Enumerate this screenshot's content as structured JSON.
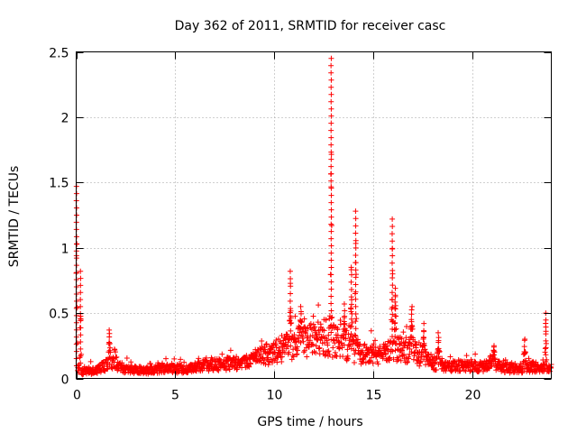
{
  "chart_data": {
    "type": "scatter",
    "title": "Day 362 of 2011, SRMTID for receiver casc",
    "xlabel": "GPS time / hours",
    "ylabel": "SRMTID / TECUs",
    "xlim": [
      0,
      24
    ],
    "ylim": [
      0,
      2.5
    ],
    "xticks": [
      0,
      5,
      10,
      15,
      20
    ],
    "yticks": [
      0,
      0.5,
      1,
      1.5,
      2,
      2.5
    ],
    "xtick_labels": [
      "0",
      "5",
      "10",
      "15",
      "20"
    ],
    "ytick_labels": [
      "0",
      "0.5",
      "1",
      "1.5",
      "2",
      "2.5"
    ],
    "grid": true,
    "marker": "+",
    "marker_color": "#ff0000",
    "baseline_profile": [
      [
        0.0,
        0.1
      ],
      [
        0.3,
        0.05
      ],
      [
        1.0,
        0.06
      ],
      [
        1.5,
        0.1
      ],
      [
        2.0,
        0.12
      ],
      [
        2.5,
        0.07
      ],
      [
        3.5,
        0.06
      ],
      [
        4.5,
        0.08
      ],
      [
        5.5,
        0.07
      ],
      [
        6.5,
        0.1
      ],
      [
        7.5,
        0.11
      ],
      [
        8.5,
        0.12
      ],
      [
        9.5,
        0.18
      ],
      [
        10.0,
        0.2
      ],
      [
        10.5,
        0.23
      ],
      [
        11.0,
        0.26
      ],
      [
        11.5,
        0.28
      ],
      [
        12.0,
        0.3
      ],
      [
        12.5,
        0.32
      ],
      [
        13.0,
        0.29
      ],
      [
        13.5,
        0.26
      ],
      [
        14.0,
        0.22
      ],
      [
        14.5,
        0.19
      ],
      [
        15.0,
        0.17
      ],
      [
        15.5,
        0.18
      ],
      [
        16.0,
        0.21
      ],
      [
        16.5,
        0.23
      ],
      [
        17.0,
        0.2
      ],
      [
        17.5,
        0.15
      ],
      [
        18.0,
        0.12
      ],
      [
        18.5,
        0.1
      ],
      [
        19.5,
        0.09
      ],
      [
        20.5,
        0.09
      ],
      [
        21.0,
        0.12
      ],
      [
        21.5,
        0.08
      ],
      [
        22.5,
        0.07
      ],
      [
        23.0,
        0.09
      ],
      [
        24.0,
        0.07
      ]
    ],
    "spikes": [
      {
        "x": 0.02,
        "width": 0.05,
        "peak": 1.47
      },
      {
        "x": 0.22,
        "width": 0.05,
        "peak": 0.82
      },
      {
        "x": 1.68,
        "width": 0.08,
        "peak": 0.37
      },
      {
        "x": 8.95,
        "width": 0.1,
        "peak": 0.16
      },
      {
        "x": 10.82,
        "width": 0.07,
        "peak": 0.82
      },
      {
        "x": 11.35,
        "width": 0.1,
        "peak": 0.55
      },
      {
        "x": 12.88,
        "width": 0.05,
        "peak": 2.45
      },
      {
        "x": 13.55,
        "width": 0.08,
        "peak": 0.57
      },
      {
        "x": 13.9,
        "width": 0.08,
        "peak": 0.85
      },
      {
        "x": 14.12,
        "width": 0.05,
        "peak": 1.28
      },
      {
        "x": 15.97,
        "width": 0.05,
        "peak": 1.22
      },
      {
        "x": 16.12,
        "width": 0.07,
        "peak": 0.69
      },
      {
        "x": 16.95,
        "width": 0.1,
        "peak": 0.55
      },
      {
        "x": 17.55,
        "width": 0.1,
        "peak": 0.42
      },
      {
        "x": 18.3,
        "width": 0.1,
        "peak": 0.35
      },
      {
        "x": 21.1,
        "width": 0.1,
        "peak": 0.25
      },
      {
        "x": 22.65,
        "width": 0.1,
        "peak": 0.3
      },
      {
        "x": 23.72,
        "width": 0.05,
        "peak": 0.5
      }
    ],
    "point_count": 1600,
    "random_seed": 362
  }
}
